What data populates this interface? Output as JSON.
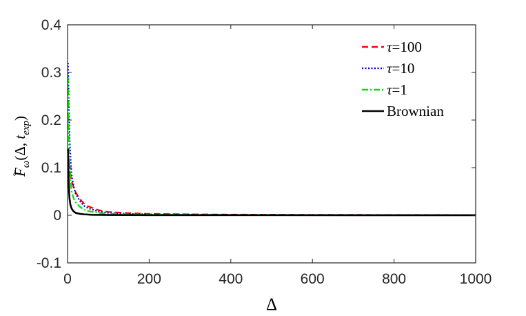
{
  "chart_data": {
    "type": "line",
    "xlabel": "Δ",
    "ylabel_parts": {
      "F": "F",
      "sub": "ω",
      "args_open": "(Δ, ",
      "t": "t",
      "t_sub": "exp",
      "args_close": ")"
    },
    "xlim": [
      0,
      1000
    ],
    "ylim": [
      -0.1,
      0.4
    ],
    "x_ticks": [
      0,
      200,
      400,
      600,
      800,
      1000
    ],
    "x_tick_labels": [
      "0",
      "200",
      "400",
      "600",
      "800",
      "1000"
    ],
    "y_ticks": [
      -0.1,
      0,
      0.1,
      0.2,
      0.3,
      0.4
    ],
    "y_tick_labels": [
      "-0.1",
      "0",
      "0.1",
      "0.2",
      "0.3",
      "0.4"
    ],
    "grid": false,
    "legend_position": "top-right",
    "series": [
      {
        "name": "τ=100",
        "legend_parts": [
          "τ",
          "=100"
        ],
        "color": "#ff0000",
        "style": "dashed",
        "x": [
          1,
          2,
          3,
          5,
          8,
          10,
          15,
          20,
          30,
          40,
          50,
          75,
          100,
          150,
          200,
          300,
          400,
          600,
          800,
          1000
        ],
        "y": [
          0.13,
          0.125,
          0.11,
          0.095,
          0.08,
          0.072,
          0.058,
          0.048,
          0.034,
          0.025,
          0.019,
          0.011,
          0.007,
          0.0045,
          0.003,
          0.002,
          0.0015,
          0.001,
          0.0008,
          0.0006
        ]
      },
      {
        "name": "τ=10",
        "legend_parts": [
          "τ",
          "=10"
        ],
        "color": "#0000cc",
        "style": "dotted",
        "x": [
          1,
          2,
          3,
          5,
          8,
          10,
          15,
          20,
          30,
          40,
          50,
          75,
          100,
          150,
          200,
          300,
          400,
          600,
          800,
          1000
        ],
        "y": [
          0.32,
          0.29,
          0.24,
          0.16,
          0.11,
          0.085,
          0.06,
          0.045,
          0.03,
          0.02,
          0.015,
          0.008,
          0.005,
          0.003,
          0.002,
          0.0015,
          0.001,
          0.0008,
          0.0006,
          0.0005
        ]
      },
      {
        "name": "τ=1",
        "legend_parts": [
          "τ",
          "=1"
        ],
        "color": "#00e000",
        "style": "dashdot",
        "x": [
          1,
          2,
          3,
          5,
          8,
          10,
          15,
          20,
          30,
          40,
          50,
          75,
          100,
          150,
          200,
          300,
          400,
          600,
          800,
          1000
        ],
        "y": [
          0.29,
          0.24,
          0.17,
          0.1,
          0.065,
          0.05,
          0.035,
          0.027,
          0.018,
          0.012,
          0.009,
          0.005,
          0.003,
          0.002,
          0.0015,
          0.001,
          0.0008,
          0.0006,
          0.0005,
          0.0004
        ]
      },
      {
        "name": "Brownian",
        "legend_parts": [
          "",
          "Brownian"
        ],
        "color": "#000000",
        "style": "solid",
        "x": [
          1,
          2,
          3,
          4,
          5,
          7,
          10,
          15,
          20,
          30,
          40,
          60,
          100,
          200,
          400,
          700,
          1000
        ],
        "y": [
          0.14,
          0.1,
          0.065,
          0.045,
          0.034,
          0.022,
          0.014,
          0.008,
          0.005,
          0.003,
          0.002,
          0.001,
          0.0006,
          0.0003,
          0.0002,
          0.0001,
          0.0001
        ]
      }
    ]
  }
}
